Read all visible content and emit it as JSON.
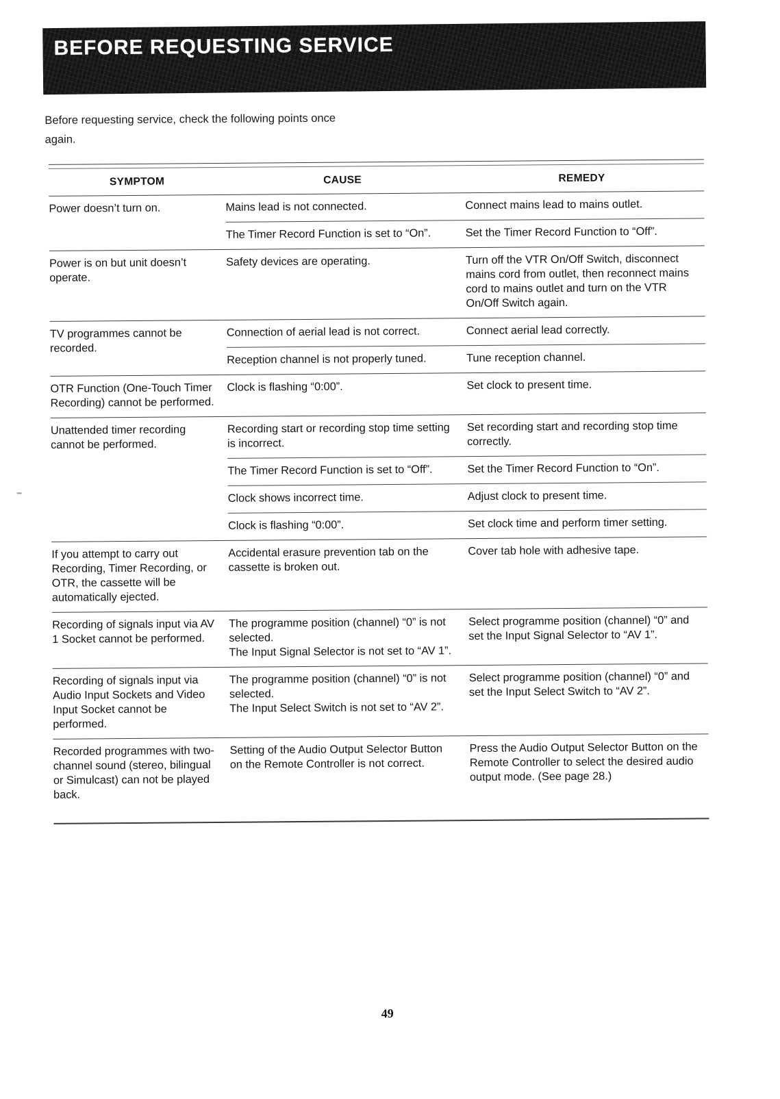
{
  "page": {
    "title": "BEFORE REQUESTING SERVICE",
    "intro_line1": "Before requesting service, check the following points once",
    "intro_line2": "again.",
    "page_number": "49"
  },
  "table": {
    "headers": [
      "SYMPTOM",
      "CAUSE",
      "REMEDY"
    ],
    "groups": [
      {
        "symptom": "Power doesn’t turn on.",
        "rows": [
          {
            "cause": [
              "Mains lead is not connected."
            ],
            "remedy": [
              "Connect mains lead to mains outlet."
            ]
          },
          {
            "cause": [
              "The Timer Record Function is set to “On”."
            ],
            "remedy": [
              "Set the Timer Record Function to “Off”."
            ]
          }
        ]
      },
      {
        "symptom": "Power is on but unit doesn’t operate.",
        "rows": [
          {
            "cause": [
              "Safety devices are operating."
            ],
            "remedy": [
              "Turn off the VTR On/Off Switch, disconnect mains cord from outlet, then reconnect mains cord to mains outlet and turn on the VTR On/Off Switch again."
            ]
          }
        ]
      },
      {
        "symptom": "TV programmes cannot be recorded.",
        "rows": [
          {
            "cause": [
              "Connection of aerial lead is not correct."
            ],
            "remedy": [
              "Connect aerial lead correctly."
            ]
          },
          {
            "cause": [
              "Reception channel is not properly tuned."
            ],
            "remedy": [
              "Tune reception channel."
            ]
          }
        ]
      },
      {
        "symptom": "OTR Function (One-Touch Timer Recording) cannot be performed.",
        "rows": [
          {
            "cause": [
              "Clock is flashing “0:00”."
            ],
            "remedy": [
              "Set clock to present time."
            ]
          }
        ]
      },
      {
        "symptom": "Unattended timer recording cannot be performed.",
        "rows": [
          {
            "cause": [
              "Recording start or recording stop time setting is incorrect."
            ],
            "remedy": [
              "Set recording start and recording stop time correctly."
            ]
          },
          {
            "cause": [
              "The Timer Record Function is set to “Off”."
            ],
            "remedy": [
              "Set the Timer Record Function to “On”."
            ]
          },
          {
            "cause": [
              "Clock shows incorrect time."
            ],
            "remedy": [
              "Adjust clock to present time."
            ]
          },
          {
            "cause": [
              "Clock is flashing “0:00”."
            ],
            "remedy": [
              "Set clock time and perform timer setting."
            ]
          }
        ]
      },
      {
        "symptom": "If you attempt to carry out Recording, Timer Recording, or OTR, the cassette will be automatically ejected.",
        "rows": [
          {
            "cause": [
              "Accidental erasure prevention tab on the cassette is broken out."
            ],
            "remedy": [
              "Cover tab hole with adhesive tape."
            ]
          }
        ]
      },
      {
        "symptom": "Recording of signals input via AV 1 Socket cannot be performed.",
        "rows": [
          {
            "cause": [
              "The programme position (channel) “0” is not selected.",
              "The Input Signal Selector is not set to “AV 1”."
            ],
            "remedy": [
              "Select programme position (channel) “0” and set the Input Signal Selector to “AV 1”."
            ]
          }
        ]
      },
      {
        "symptom": "Recording of signals input via Audio Input Sockets and Video Input Socket cannot be performed.",
        "rows": [
          {
            "cause": [
              "The programme position (channel) “0” is not selected.",
              "The Input Select Switch is not set to “AV 2”."
            ],
            "remedy": [
              "Select programme position (channel) “0” and set the Input Select Switch to “AV 2”."
            ]
          }
        ]
      },
      {
        "symptom": "Recorded programmes with two-channel sound (stereo, bilingual or Simulcast) can not be played back.",
        "rows": [
          {
            "cause": [
              "Setting of the Audio Output Selector Button on the Remote Controller is not correct."
            ],
            "remedy": [
              "Press the Audio Output Selector Button on the Remote Controller to select the desired audio output mode. (See page 28.)"
            ]
          }
        ]
      }
    ]
  }
}
